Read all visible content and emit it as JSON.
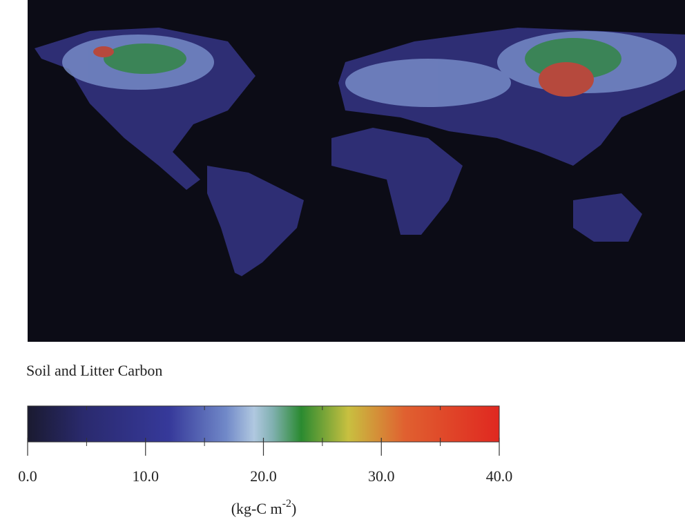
{
  "title": "Soil and Litter Carbon",
  "colorbar": {
    "clim": [
      0,
      40
    ],
    "ticks": [
      {
        "value": 0,
        "label": "0.0"
      },
      {
        "value": 10,
        "label": "10.0"
      },
      {
        "value": 20,
        "label": "20.0"
      },
      {
        "value": 30,
        "label": "30.0"
      },
      {
        "value": 40,
        "label": "40.0"
      }
    ],
    "minor_ticks": [
      5,
      15,
      25,
      35
    ],
    "unit": [
      "(kg-C m",
      "-2",
      ")"
    ]
  }
}
